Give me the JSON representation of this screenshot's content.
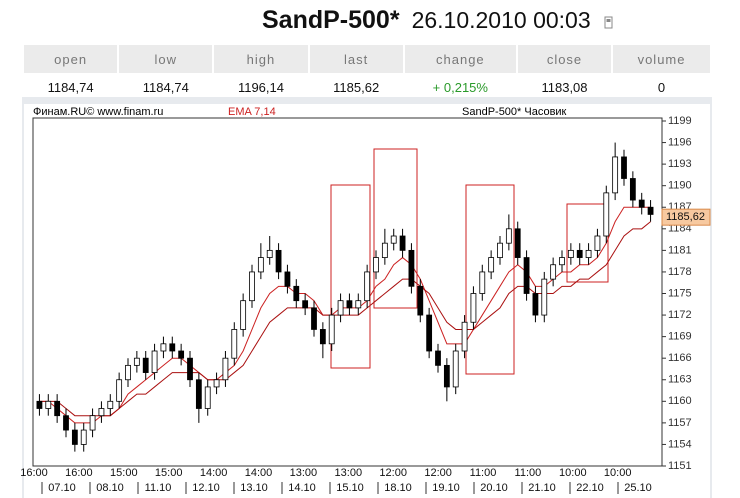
{
  "header": {
    "title": "SandP-500*",
    "datetime": "26.10.2010 00:03"
  },
  "table": {
    "columns": [
      "open",
      "low",
      "high",
      "last",
      "change",
      "close",
      "volume"
    ],
    "values": [
      "1184,74",
      "1184,74",
      "1196,14",
      "1185,62",
      "+ 0,215%",
      "1183,08",
      "0"
    ]
  },
  "chart_data": {
    "type": "candlestick",
    "source": "Финам.RU©  www.finam.ru",
    "indicator": "EMA 7,14",
    "title": "SandP-500* Часовик",
    "last_label": {
      "value": 1185.62,
      "label": "1185,62"
    },
    "ylim": [
      1151,
      1199
    ],
    "yticks": [
      1151,
      1154,
      1157,
      1160,
      1163,
      1166,
      1169,
      1172,
      1175,
      1178,
      1181,
      1184,
      1187,
      1190,
      1193,
      1196,
      1199
    ],
    "time_labels": [
      "16:00",
      "16:00",
      "15:00",
      "15:00",
      "14:00",
      "14:00",
      "13:00",
      "13:00",
      "12:00",
      "12:00",
      "11:00",
      "11:00",
      "10:00",
      "10:00"
    ],
    "date_labels": [
      "07.10",
      "08.10",
      "11.10",
      "12.10",
      "13.10",
      "14.10",
      "15.10",
      "18.10",
      "19.10",
      "20.10",
      "21.10",
      "22.10",
      "25.10"
    ],
    "open": [
      1160,
      1159,
      1160,
      1158,
      1156,
      1154,
      1156,
      1158,
      1159,
      1160,
      1163,
      1165,
      1166,
      1164,
      1167,
      1168,
      1167,
      1166,
      1163,
      1159,
      1162,
      1163,
      1166,
      1170,
      1174,
      1178,
      1180,
      1181,
      1178,
      1176,
      1174,
      1173,
      1170,
      1168,
      1172,
      1174,
      1173,
      1174,
      1178,
      1180,
      1182,
      1183,
      1181,
      1176,
      1172,
      1167,
      1165,
      1162,
      1167,
      1171,
      1175,
      1178,
      1180,
      1182,
      1184,
      1180,
      1175,
      1172,
      1177,
      1179,
      1180,
      1181,
      1180,
      1181,
      1183,
      1189,
      1194,
      1191,
      1188,
      1187
    ],
    "high": [
      1161,
      1161,
      1161,
      1159,
      1157,
      1157,
      1159,
      1160,
      1161,
      1164,
      1166,
      1167,
      1167,
      1168,
      1169,
      1169,
      1168,
      1167,
      1164,
      1163,
      1164,
      1167,
      1171,
      1175,
      1179,
      1182,
      1183,
      1182,
      1179,
      1177,
      1175,
      1174,
      1171,
      1173,
      1175,
      1175,
      1175,
      1179,
      1181,
      1184,
      1184,
      1184,
      1182,
      1177,
      1173,
      1168,
      1166,
      1168,
      1172,
      1176,
      1179,
      1181,
      1183,
      1186,
      1185,
      1181,
      1176,
      1178,
      1180,
      1181,
      1182,
      1182,
      1182,
      1184,
      1190,
      1196,
      1195,
      1192,
      1189,
      1188
    ],
    "low": [
      1158,
      1158,
      1157,
      1155,
      1153,
      1153,
      1155,
      1157,
      1158,
      1159,
      1162,
      1164,
      1163,
      1163,
      1166,
      1166,
      1165,
      1162,
      1157,
      1158,
      1161,
      1162,
      1165,
      1169,
      1173,
      1177,
      1179,
      1177,
      1175,
      1173,
      1172,
      1169,
      1166,
      1167,
      1171,
      1172,
      1172,
      1173,
      1177,
      1179,
      1181,
      1180,
      1175,
      1171,
      1166,
      1164,
      1160,
      1161,
      1166,
      1170,
      1174,
      1177,
      1179,
      1181,
      1179,
      1174,
      1171,
      1171,
      1176,
      1178,
      1179,
      1179,
      1179,
      1180,
      1182,
      1188,
      1190,
      1187,
      1186,
      1185
    ],
    "close": [
      1159,
      1160,
      1158,
      1156,
      1154,
      1156,
      1158,
      1159,
      1160,
      1163,
      1165,
      1166,
      1164,
      1167,
      1168,
      1167,
      1166,
      1163,
      1159,
      1162,
      1163,
      1166,
      1170,
      1174,
      1178,
      1180,
      1181,
      1178,
      1176,
      1174,
      1173,
      1170,
      1168,
      1172,
      1174,
      1173,
      1174,
      1178,
      1180,
      1182,
      1183,
      1181,
      1176,
      1172,
      1167,
      1165,
      1162,
      1167,
      1171,
      1175,
      1178,
      1180,
      1182,
      1184,
      1180,
      1175,
      1172,
      1177,
      1179,
      1180,
      1181,
      1180,
      1181,
      1183,
      1189,
      1194,
      1191,
      1188,
      1187,
      1186
    ],
    "series": [
      {
        "color": "#cc2222",
        "values": [
          1160,
          1160,
          1159,
          1158,
          1157,
          1157,
          1157,
          1158,
          1158,
          1159,
          1161,
          1162,
          1163,
          1164,
          1165,
          1166,
          1166,
          1165,
          1164,
          1163,
          1163,
          1164,
          1165,
          1167,
          1170,
          1173,
          1175,
          1176,
          1176,
          1175,
          1175,
          1174,
          1172,
          1172,
          1173,
          1173,
          1173,
          1174,
          1176,
          1177,
          1179,
          1180,
          1179,
          1177,
          1174,
          1171,
          1168,
          1168,
          1168,
          1170,
          1172,
          1174,
          1176,
          1178,
          1179,
          1178,
          1176,
          1176,
          1177,
          1178,
          1178,
          1179,
          1179,
          1180,
          1182,
          1185,
          1187,
          1187,
          1187,
          1187
        ]
      },
      {
        "color": "#aa1111",
        "values": [
          1160,
          1160,
          1160,
          1159,
          1158,
          1158,
          1158,
          1158,
          1158,
          1159,
          1160,
          1161,
          1161,
          1162,
          1163,
          1164,
          1164,
          1164,
          1164,
          1163,
          1163,
          1163,
          1164,
          1165,
          1167,
          1169,
          1171,
          1172,
          1173,
          1173,
          1173,
          1173,
          1172,
          1172,
          1172,
          1172,
          1172,
          1173,
          1174,
          1175,
          1176,
          1177,
          1177,
          1176,
          1175,
          1173,
          1171,
          1170,
          1170,
          1170,
          1171,
          1172,
          1173,
          1175,
          1176,
          1176,
          1175,
          1175,
          1175,
          1176,
          1176,
          1177,
          1177,
          1178,
          1179,
          1181,
          1183,
          1184,
          1184,
          1185
        ]
      }
    ]
  }
}
